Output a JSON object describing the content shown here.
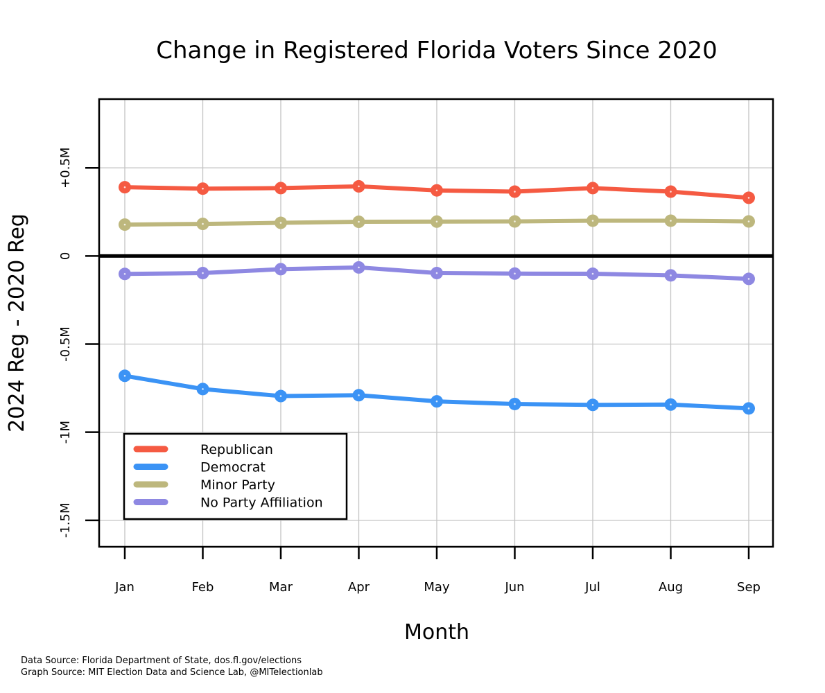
{
  "chart_data": {
    "type": "line",
    "title": "Change in Registered Florida Voters Since 2020",
    "xlabel": "Month",
    "ylabel": "2024 Reg - 2020 Reg",
    "categories": [
      "Jan",
      "Feb",
      "Mar",
      "Apr",
      "May",
      "Jun",
      "Jul",
      "Aug",
      "Sep"
    ],
    "ylim": [
      -1650000,
      890000
    ],
    "yticks": [
      {
        "value": 500000,
        "label": "+0.5M"
      },
      {
        "value": 0,
        "label": "0"
      },
      {
        "value": -500000,
        "label": "-0.5M"
      },
      {
        "value": -1000000,
        "label": "-1M"
      },
      {
        "value": -1500000,
        "label": "-1.5M"
      }
    ],
    "grid": true,
    "zero_line": true,
    "legend_position": "bottom-left",
    "series": [
      {
        "name": "Republican",
        "color": "#F55A42",
        "values": [
          390000,
          382000,
          385000,
          395000,
          372000,
          365000,
          385000,
          365000,
          330000
        ]
      },
      {
        "name": "Democrat",
        "color": "#3B93F5",
        "values": [
          -680000,
          -755000,
          -795000,
          -790000,
          -825000,
          -840000,
          -845000,
          -843000,
          -865000
        ]
      },
      {
        "name": "Minor Party",
        "color": "#BDB77D",
        "values": [
          178000,
          182000,
          188000,
          194000,
          195000,
          196000,
          200000,
          200000,
          196000
        ]
      },
      {
        "name": "No Party Affiliation",
        "color": "#8E88E2",
        "values": [
          -102000,
          -97000,
          -75000,
          -65000,
          -97000,
          -100000,
          -101000,
          -110000,
          -130000
        ]
      }
    ]
  },
  "footer": {
    "data_source": "Data Source: Florida Department of State, dos.fl.gov/elections",
    "graph_source": "Graph Source: MIT Election Data and Science Lab, @MITelectionlab"
  }
}
